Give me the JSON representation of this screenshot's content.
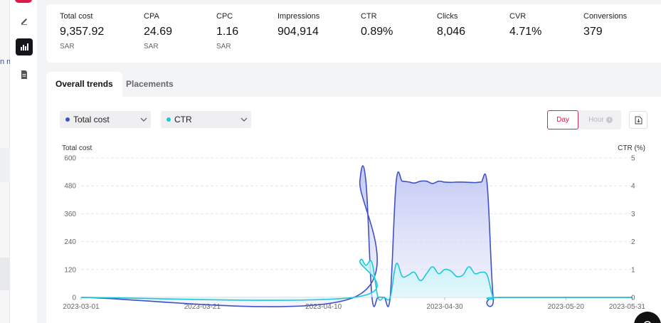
{
  "sidebar_clip": {
    "text": "n m"
  },
  "metrics": [
    {
      "label": "Total cost",
      "value": "9,357.92",
      "unit": "SAR"
    },
    {
      "label": "CPA",
      "value": "24.69",
      "unit": "SAR"
    },
    {
      "label": "CPC",
      "value": "1.16",
      "unit": "SAR"
    },
    {
      "label": "Impressions",
      "value": "904,914",
      "unit": ""
    },
    {
      "label": "CTR",
      "value": "0.89%",
      "unit": ""
    },
    {
      "label": "Clicks",
      "value": "8,046",
      "unit": ""
    },
    {
      "label": "CVR",
      "value": "4.71%",
      "unit": ""
    },
    {
      "label": "Conversions",
      "value": "379",
      "unit": ""
    }
  ],
  "tabs": [
    {
      "label": "Overall trends",
      "active": true
    },
    {
      "label": "Placements",
      "active": false
    }
  ],
  "controls": {
    "metric_left": {
      "label": "Total cost",
      "dot_color": "#3f51c8"
    },
    "metric_right": {
      "label": "CTR",
      "dot_color": "#1ec8d8"
    },
    "day_label": "Day",
    "hour_label": "Hour",
    "info_glyph": "i"
  },
  "chart_data": {
    "type": "area",
    "ylabel": "Total cost",
    "y2label": "CTR (%)",
    "ylim": [
      0,
      600
    ],
    "y2lim": [
      0,
      5
    ],
    "yticks": [
      "600",
      "480",
      "360",
      "240",
      "120",
      "0"
    ],
    "y2ticks": [
      "5",
      "4",
      "3",
      "2",
      "1",
      "0"
    ],
    "xticks": [
      "2023-03-01",
      "2023-03-21",
      "2023-04-10",
      "2023-04-30",
      "2023-05-20",
      "2023-05-31"
    ],
    "grid": true,
    "colors": {
      "total_cost": "#3f51c8",
      "ctr": "#1ec8d8"
    },
    "series": [
      {
        "axis": "left",
        "x": [
          "2023-03-01",
          "2023-04-15",
          "2023-04-16",
          "2023-04-17",
          "2023-04-18",
          "2023-04-19",
          "2023-04-20",
          "2023-04-21",
          "2023-04-22",
          "2023-04-23",
          "2023-04-24",
          "2023-04-25",
          "2023-04-26",
          "2023-04-27",
          "2023-04-28",
          "2023-04-29",
          "2023-04-30",
          "2023-05-01",
          "2023-05-02",
          "2023-05-03",
          "2023-05-04",
          "2023-05-05",
          "2023-05-06",
          "2023-05-07",
          "2023-05-08",
          "2023-05-09",
          "2023-05-31"
        ],
        "values": [
          0,
          0,
          500,
          498,
          0,
          0,
          0,
          0,
          500,
          500,
          497,
          492,
          500,
          500,
          490,
          500,
          496,
          495,
          496,
          496,
          495,
          494,
          496,
          490,
          0,
          0,
          0
        ]
      },
      {
        "axis": "right",
        "x": [
          "2023-03-01",
          "2023-04-15",
          "2023-04-16",
          "2023-04-17",
          "2023-04-18",
          "2023-04-19",
          "2023-04-20",
          "2023-04-21",
          "2023-04-22",
          "2023-04-23",
          "2023-04-24",
          "2023-04-25",
          "2023-04-26",
          "2023-04-27",
          "2023-04-28",
          "2023-04-29",
          "2023-04-30",
          "2023-05-01",
          "2023-05-02",
          "2023-05-03",
          "2023-05-04",
          "2023-05-05",
          "2023-05-06",
          "2023-05-07",
          "2023-05-08",
          "2023-05-09",
          "2023-05-31"
        ],
        "values": [
          0,
          0,
          1.3,
          1.15,
          1.25,
          0,
          0,
          0,
          1.2,
          0.75,
          0.8,
          0.9,
          0.6,
          0.85,
          1.1,
          0.85,
          1.0,
          0.95,
          0.75,
          0.8,
          1.1,
          0.85,
          0.9,
          0.8,
          0,
          0,
          0
        ]
      }
    ]
  }
}
